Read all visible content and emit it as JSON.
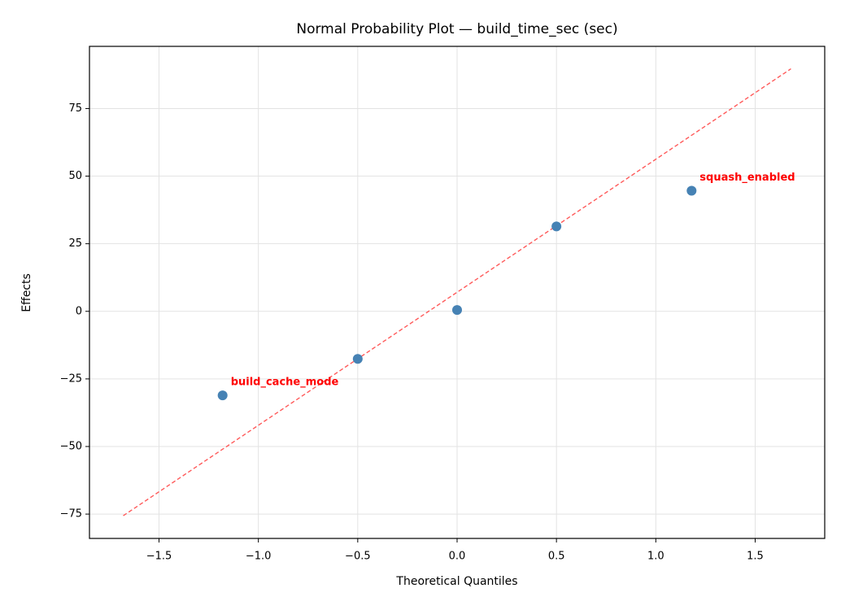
{
  "chart_data": {
    "type": "scatter",
    "title": "Normal Probability Plot — build_time_sec (sec)",
    "x_label": "Theoretical Quantiles",
    "y_label": "Effects",
    "series": [
      {
        "color": "#4682b4",
        "x": [
          -1.18,
          -0.5,
          0.0,
          0.5,
          1.18
        ],
        "values": [
          -31.1,
          -17.6,
          0.5,
          31.4,
          44.6
        ]
      }
    ],
    "reference_line": {
      "color": "#ff5a5a",
      "x": [
        -1.68,
        1.68
      ],
      "values": [
        -75.6,
        89.7
      ]
    },
    "annotations": [
      {
        "text": "build_cache_mode",
        "point": 0,
        "color": "#ff0000"
      },
      {
        "text": "squash_enabled",
        "point": 4,
        "color": "#ff0000"
      }
    ],
    "xlim": [
      -1.85,
      1.85
    ],
    "ylim": [
      -84,
      98
    ],
    "xticks": [
      {
        "value": -1.5,
        "label": "−1.5"
      },
      {
        "value": -1.0,
        "label": "−1.0"
      },
      {
        "value": -0.5,
        "label": "−0.5"
      },
      {
        "value": 0,
        "label": "0.0"
      },
      {
        "value": 0.5,
        "label": "0.5"
      },
      {
        "value": 1.0,
        "label": "1.0"
      },
      {
        "value": 1.5,
        "label": "1.5"
      }
    ],
    "yticks": [
      {
        "value": -75,
        "label": "−75"
      },
      {
        "value": -50,
        "label": "−50"
      },
      {
        "value": -25,
        "label": "−25"
      },
      0,
      25,
      50,
      75
    ],
    "grid": true
  }
}
